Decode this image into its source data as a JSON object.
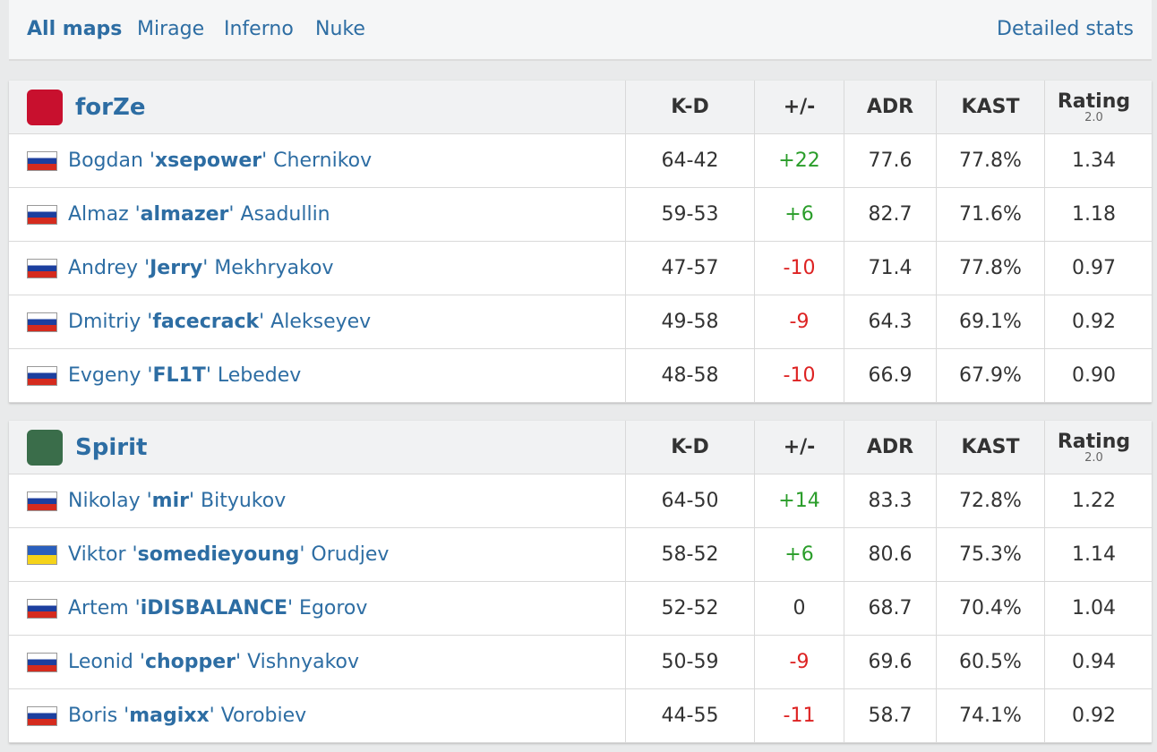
{
  "tabs": [
    "All maps",
    "Mirage",
    "Inferno",
    "Nuke"
  ],
  "detailed_stats": "Detailed stats",
  "teams": [
    {
      "name": "forZe",
      "columns": [
        "K-D",
        "+/-",
        "ADR",
        "KAST",
        "Rating"
      ],
      "rating_version": "2.0",
      "players": [
        {
          "pre": "Bogdan '",
          "nick": "xsepower",
          "post": "' Chernikov",
          "kd": "64-42",
          "diff": "+22",
          "adr": "77.6",
          "kast": "77.8%",
          "rating": "1.34"
        },
        {
          "pre": "Almaz '",
          "nick": "almazer",
          "post": "' Asadullin",
          "kd": "59-53",
          "diff": "+6",
          "adr": "82.7",
          "kast": "71.6%",
          "rating": "1.18"
        },
        {
          "pre": "Andrey '",
          "nick": "Jerry",
          "post": "' Mekhryakov",
          "kd": "47-57",
          "diff": "-10",
          "adr": "71.4",
          "kast": "77.8%",
          "rating": "0.97"
        },
        {
          "pre": "Dmitriy '",
          "nick": "facecrack",
          "post": "' Alekseyev",
          "kd": "49-58",
          "diff": "-9",
          "adr": "64.3",
          "kast": "69.1%",
          "rating": "0.92"
        },
        {
          "pre": "Evgeny '",
          "nick": "FL1T",
          "post": "' Lebedev",
          "kd": "48-58",
          "diff": "-10",
          "adr": "66.9",
          "kast": "67.9%",
          "rating": "0.90"
        }
      ]
    },
    {
      "name": "Spirit",
      "columns": [
        "K-D",
        "+/-",
        "ADR",
        "KAST",
        "Rating"
      ],
      "rating_version": "2.0",
      "players": [
        {
          "pre": "Nikolay '",
          "nick": "mir",
          "post": "' Bityukov",
          "kd": "64-50",
          "diff": "+14",
          "adr": "83.3",
          "kast": "72.8%",
          "rating": "1.22"
        },
        {
          "pre": "Viktor '",
          "nick": "somedieyoung",
          "post": "' Orudjev",
          "kd": "58-52",
          "diff": "+6",
          "adr": "80.6",
          "kast": "75.3%",
          "rating": "1.14"
        },
        {
          "pre": "Artem '",
          "nick": "iDISBALANCE",
          "post": "' Egorov",
          "kd": "52-52",
          "diff": "0",
          "adr": "68.7",
          "kast": "70.4%",
          "rating": "1.04"
        },
        {
          "pre": "Leonid '",
          "nick": "chopper",
          "post": "' Vishnyakov",
          "kd": "50-59",
          "diff": "-9",
          "adr": "69.6",
          "kast": "60.5%",
          "rating": "0.94"
        },
        {
          "pre": "Boris '",
          "nick": "magixx",
          "post": "' Vorobiev",
          "kd": "44-55",
          "diff": "-11",
          "adr": "58.7",
          "kast": "74.1%",
          "rating": "0.92"
        }
      ]
    }
  ]
}
